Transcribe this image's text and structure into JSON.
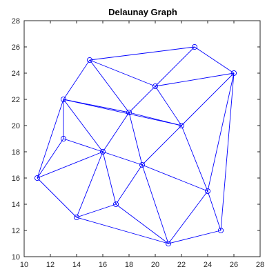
{
  "chart_data": {
    "type": "scatter",
    "title": "Delaunay Graph",
    "xlabel": "",
    "ylabel": "",
    "xlim": [
      10,
      28
    ],
    "ylim": [
      10,
      28
    ],
    "x_ticks": [
      10,
      12,
      14,
      16,
      18,
      20,
      22,
      24,
      26,
      28
    ],
    "y_ticks": [
      10,
      12,
      14,
      16,
      18,
      20,
      22,
      24,
      26,
      28
    ],
    "grid": false,
    "color": "#0000ff",
    "marker": "circle",
    "nodes": [
      {
        "x": 11,
        "y": 16
      },
      {
        "x": 13,
        "y": 19
      },
      {
        "x": 13,
        "y": 22
      },
      {
        "x": 14,
        "y": 13
      },
      {
        "x": 15,
        "y": 25
      },
      {
        "x": 16,
        "y": 18
      },
      {
        "x": 17,
        "y": 14
      },
      {
        "x": 18,
        "y": 21
      },
      {
        "x": 19,
        "y": 17
      },
      {
        "x": 20,
        "y": 23
      },
      {
        "x": 21,
        "y": 11
      },
      {
        "x": 22,
        "y": 20
      },
      {
        "x": 23,
        "y": 26
      },
      {
        "x": 24,
        "y": 15
      },
      {
        "x": 25,
        "y": 12
      },
      {
        "x": 26,
        "y": 24
      }
    ],
    "edges": [
      [
        0,
        1
      ],
      [
        0,
        2
      ],
      [
        0,
        5
      ],
      [
        0,
        3
      ],
      [
        1,
        2
      ],
      [
        1,
        5
      ],
      [
        2,
        5
      ],
      [
        2,
        4
      ],
      [
        2,
        7
      ],
      [
        2,
        11
      ],
      [
        3,
        5
      ],
      [
        3,
        6
      ],
      [
        3,
        10
      ],
      [
        4,
        7
      ],
      [
        4,
        9
      ],
      [
        4,
        12
      ],
      [
        5,
        7
      ],
      [
        5,
        6
      ],
      [
        5,
        8
      ],
      [
        6,
        8
      ],
      [
        6,
        10
      ],
      [
        7,
        8
      ],
      [
        7,
        9
      ],
      [
        7,
        11
      ],
      [
        8,
        11
      ],
      [
        8,
        10
      ],
      [
        8,
        13
      ],
      [
        9,
        12
      ],
      [
        9,
        15
      ],
      [
        9,
        11
      ],
      [
        10,
        13
      ],
      [
        10,
        14
      ],
      [
        11,
        15
      ],
      [
        11,
        13
      ],
      [
        12,
        15
      ],
      [
        13,
        15
      ],
      [
        13,
        14
      ],
      [
        14,
        15
      ]
    ]
  }
}
